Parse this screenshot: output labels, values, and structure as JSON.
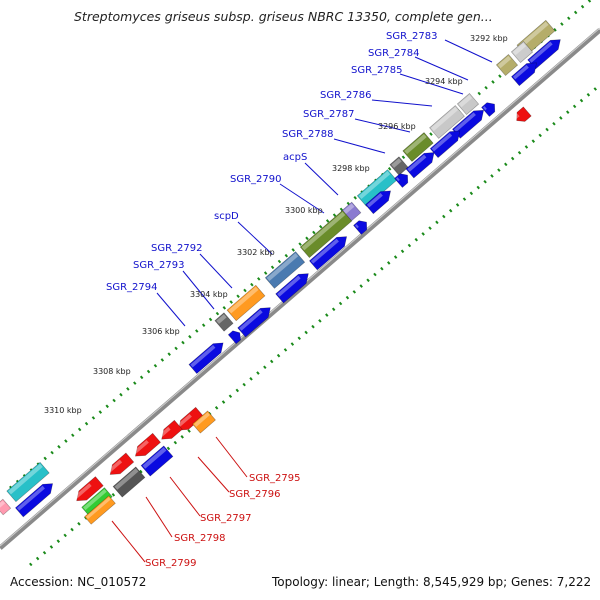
{
  "title": "Streptomyces griseus subsp. griseus NBRC 13350, complete gen...",
  "footer": {
    "accession": "Accession: NC_010572",
    "summary": "Topology: linear; Length: 8,545,929 bp; Genes: 7,222"
  },
  "scale_labels": [
    "3292 kbp",
    "3294 kbp",
    "3296 kbp",
    "3298 kbp",
    "3300 kbp",
    "3302 kbp",
    "3304 kbp",
    "3306 kbp",
    "3308 kbp",
    "3310 kbp"
  ],
  "forward_genes": [
    "SGR_2783",
    "SGR_2784",
    "SGR_2785",
    "SGR_2786",
    "SGR_2787",
    "SGR_2788",
    "acpS",
    "SGR_2790",
    "scpD",
    "SGR_2792",
    "SGR_2793",
    "SGR_2794"
  ],
  "reverse_genes": [
    "SGR_2795",
    "SGR_2796",
    "SGR_2797",
    "SGR_2798",
    "SGR_2799"
  ],
  "colors": {
    "forward_label": "#1111cc",
    "reverse_label": "#cc1111",
    "cds_forward": "#0a0ae0",
    "cds_reverse": "#ee1111",
    "backbone": "#8a8a8a",
    "tick_dots": "#1a8a1a"
  }
}
